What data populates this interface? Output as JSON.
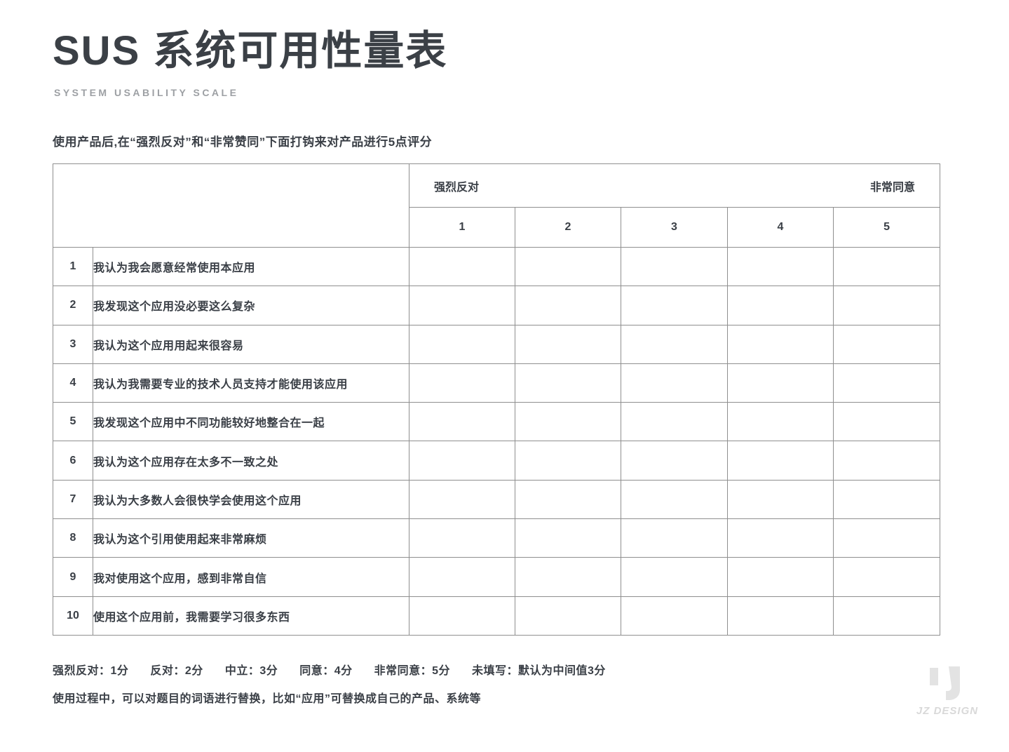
{
  "page": {
    "title": "SUS 系统可用性量表",
    "subtitle": "SYSTEM USABILITY SCALE",
    "instruction": "使用产品后,在“强烈反对”和“非常赞同”下面打钩来对产品进行5点评分"
  },
  "table": {
    "scale_left_label": "强烈反对",
    "scale_right_label": "非常同意",
    "scale_points": [
      "1",
      "2",
      "3",
      "4",
      "5"
    ],
    "questions": [
      {
        "no": "1",
        "text": "我认为我会愿意经常使用本应用"
      },
      {
        "no": "2",
        "text": "我发现这个应用没必要这么复杂"
      },
      {
        "no": "3",
        "text": "我认为这个应用用起来很容易"
      },
      {
        "no": "4",
        "text": "我认为我需要专业的技术人员支持才能使用该应用"
      },
      {
        "no": "5",
        "text": "我发现这个应用中不同功能较好地整合在一起"
      },
      {
        "no": "6",
        "text": "我认为这个应用存在太多不一致之处"
      },
      {
        "no": "7",
        "text": "我认为大多数人会很快学会使用这个应用"
      },
      {
        "no": "8",
        "text": "我认为这个引用使用起来非常麻烦"
      },
      {
        "no": "9",
        "text": "我对使用这个应用，感到非常自信"
      },
      {
        "no": "10",
        "text": "使用这个应用前，我需要学习很多东西"
      }
    ]
  },
  "footer": {
    "scoring_items": [
      "强烈反对：1分",
      "反对：2分",
      "中立：3分",
      "同意：4分",
      "非常同意：5分",
      "未填写：默认为中间值3分"
    ],
    "note": "使用过程中，可以对题目的词语进行替换，比如“应用”可替换成自己的产品、系统等"
  },
  "logo": {
    "text": "JZ DESIGN"
  },
  "colors": {
    "background": "#ffffff",
    "title": "#3b4046",
    "subtitle": "#9da0a4",
    "ink": "#3a3f46",
    "border": "#8f8f8f",
    "logo": "#e3e3e3",
    "logo_text": "#d9d9d9"
  }
}
